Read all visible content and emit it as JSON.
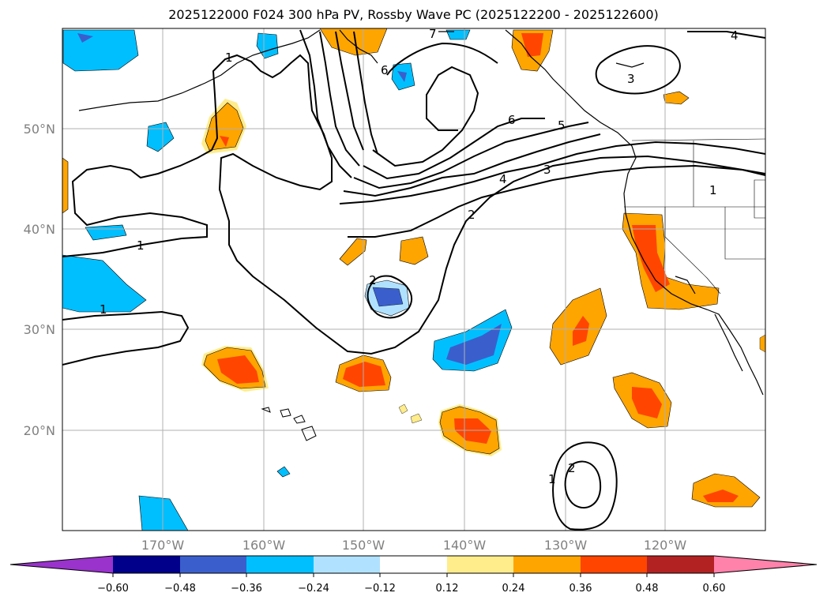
{
  "map": {
    "title": "2025122000 F024 300 hPa PV, Rossby Wave PC (2025122200 - 2025122600)",
    "lon_labels": [
      "170°W",
      "160°W",
      "150°W",
      "140°W",
      "130°W",
      "120°W"
    ],
    "lat_labels": [
      "50°N",
      "40°N",
      "30°N",
      "20°N"
    ],
    "contour_labels": [
      "1",
      "1",
      "1",
      "1",
      "2",
      "2",
      "2",
      "3",
      "3",
      "4",
      "4",
      "5",
      "6",
      "6",
      "7"
    ],
    "colorbar": {
      "tick_labels": [
        "−0.60",
        "−0.48",
        "−0.36",
        "−0.24",
        "−0.12",
        "0.12",
        "0.24",
        "0.36",
        "0.48",
        "0.60"
      ],
      "colors": [
        "#9933cc",
        "#00008b",
        "#3a5fcd",
        "#00bfff",
        "#b0e2ff",
        "#ffffff",
        "#ffec8b",
        "#ffa500",
        "#ff4500",
        "#b22222",
        "#ff82ab"
      ]
    }
  }
}
